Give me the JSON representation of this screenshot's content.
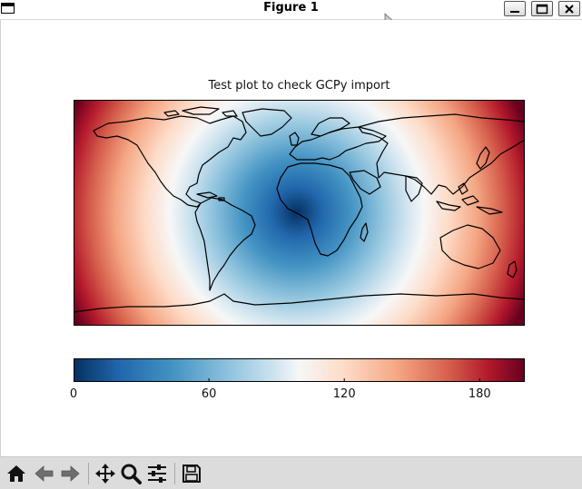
{
  "window": {
    "title": "Figure 1",
    "controls": [
      "minimize",
      "maximize",
      "close"
    ]
  },
  "figure": {
    "title": "Test plot to check GCPy import",
    "colormap": "RdBu_r",
    "colors": {
      "low": "#053061",
      "mid": "#f7f7f7",
      "high": "#67001f",
      "coastline": "#000000"
    }
  },
  "chart_data": {
    "type": "heatmap",
    "title": "Test plot to check GCPy import",
    "description_field": "distance-like field centred on central Africa over a global map with coastlines",
    "colorbar": {
      "range": [
        0,
        200
      ],
      "ticks": [
        0,
        60,
        120,
        180
      ],
      "tick_labels": [
        "0",
        "60",
        "120",
        "180"
      ],
      "orientation": "horizontal"
    }
  },
  "toolbar": {
    "buttons": [
      {
        "name": "home",
        "icon": "home-icon"
      },
      {
        "name": "back",
        "icon": "back-arrow-icon"
      },
      {
        "name": "forward",
        "icon": "forward-arrow-icon"
      },
      {
        "name": "pan",
        "icon": "move-icon"
      },
      {
        "name": "zoom",
        "icon": "zoom-icon"
      },
      {
        "name": "configure-subplots",
        "icon": "sliders-icon"
      },
      {
        "name": "save",
        "icon": "save-icon"
      }
    ]
  }
}
